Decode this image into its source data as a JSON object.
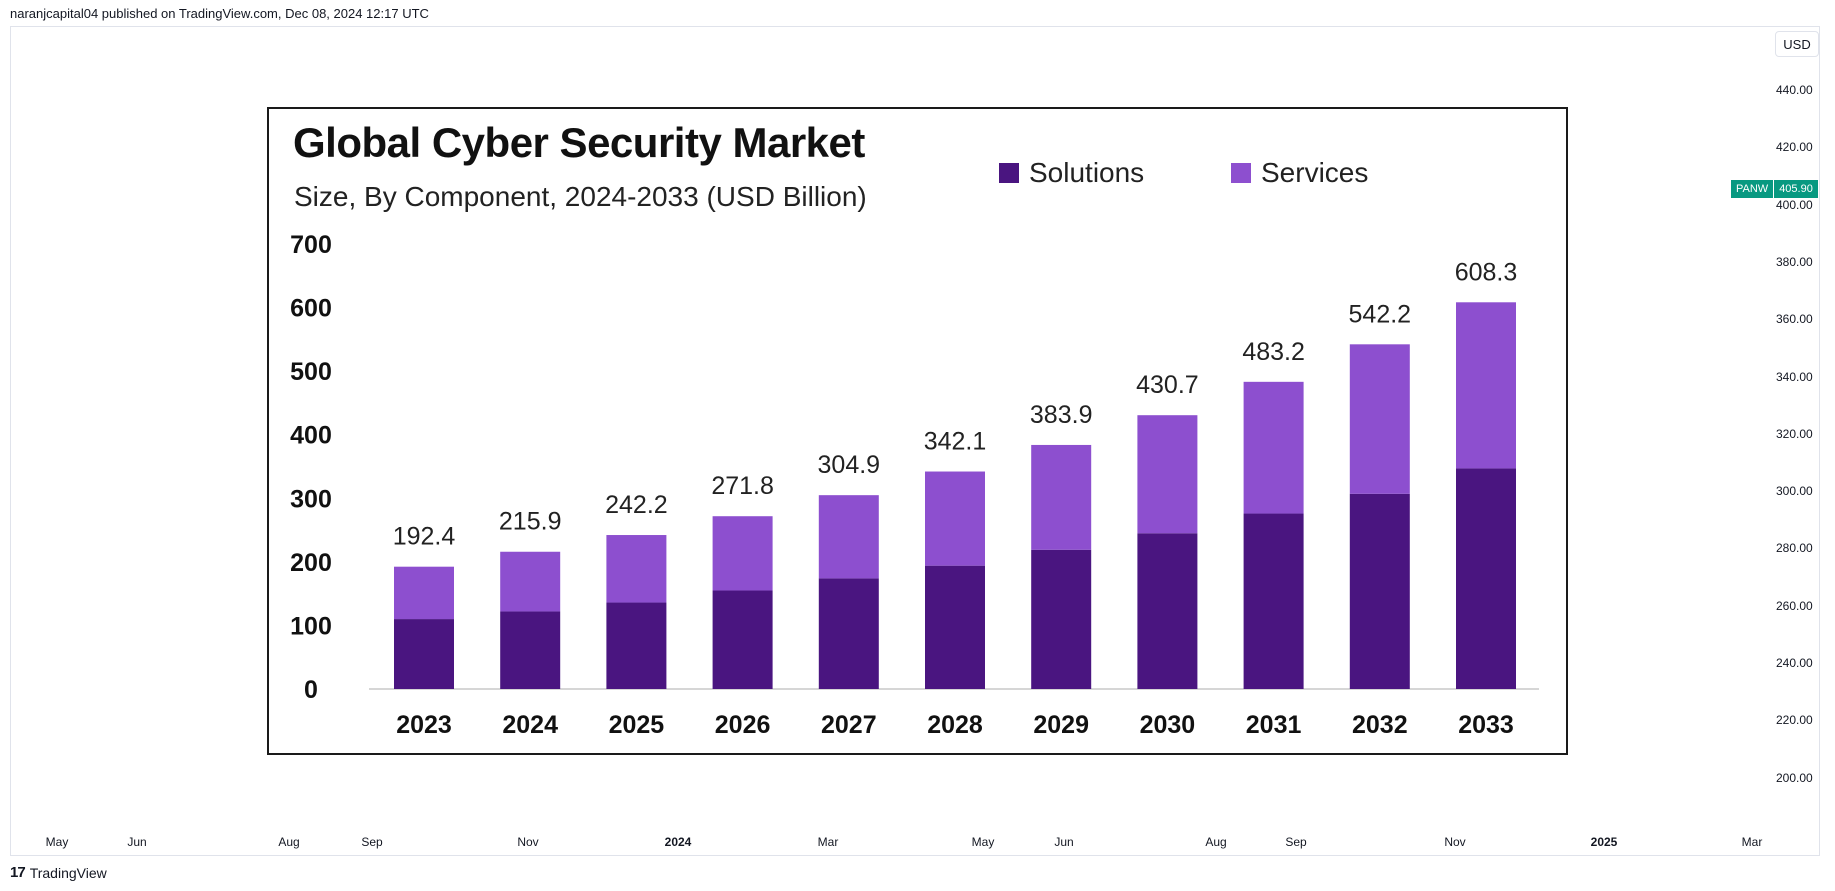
{
  "header": {
    "published_text": "naranjcapital04 published on TradingView.com, Dec 08, 2024 12:17 UTC"
  },
  "price_axis": {
    "currency": "USD",
    "labels": [
      "440.00",
      "420.00",
      "400.00",
      "380.00",
      "360.00",
      "340.00",
      "320.00",
      "300.00",
      "280.00",
      "260.00",
      "240.00",
      "220.00",
      "200.00"
    ],
    "ticker": "PANW",
    "last_price": "405.90"
  },
  "time_axis": {
    "labels": [
      "May",
      "Jun",
      "Aug",
      "Sep",
      "Nov",
      "2024",
      "Mar",
      "May",
      "Jun",
      "Aug",
      "Sep",
      "Nov",
      "2025",
      "Mar"
    ]
  },
  "footer": {
    "brand": "TradingView",
    "logo_glyph": "17"
  },
  "colors": {
    "solutions": "#4a1580",
    "services": "#8d4fcf",
    "badge": "#089981"
  },
  "chart_data": {
    "type": "bar",
    "stacked": true,
    "title": "Global Cyber Security Market",
    "subtitle": "Size, By Component, 2024-2033 (USD Billion)",
    "categories": [
      "2023",
      "2024",
      "2025",
      "2026",
      "2027",
      "2028",
      "2029",
      "2030",
      "2031",
      "2032",
      "2033"
    ],
    "series": [
      {
        "name": "Solutions",
        "values": [
          110,
          122,
          136,
          155,
          174,
          194,
          219,
          245,
          276,
          307,
          347
        ]
      },
      {
        "name": "Services",
        "values": [
          82.4,
          93.9,
          106.2,
          116.8,
          130.9,
          148.1,
          164.9,
          185.7,
          207.2,
          235.2,
          261.3
        ]
      }
    ],
    "totals": [
      "192.4",
      "215.9",
      "242.2",
      "271.8",
      "304.9",
      "342.1",
      "383.9",
      "430.7",
      "483.2",
      "542.2",
      "608.3"
    ],
    "yticks": [
      0,
      100,
      200,
      300,
      400,
      500,
      600,
      700
    ],
    "ylim": [
      0,
      700
    ],
    "legend_position": "top-right"
  }
}
